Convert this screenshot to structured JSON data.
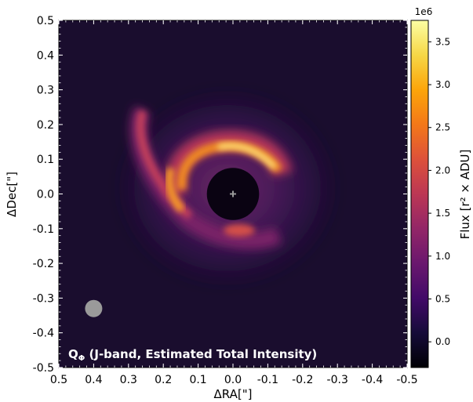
{
  "chart_data": {
    "type": "heatmap",
    "title_main": "Q",
    "title_sub": "Φ",
    "title_rest": " (J-band, Estimated Total Intensity)",
    "xlabel": "ΔRA[\"]",
    "ylabel": "ΔDec[\"]",
    "xlim": [
      0.5,
      -0.5
    ],
    "ylim": [
      -0.5,
      0.5
    ],
    "x_ticks": [
      "0.5",
      "0.4",
      "0.3",
      "0.2",
      "0.1",
      "0.0",
      "-0.1",
      "-0.2",
      "-0.3",
      "-0.4",
      "-0.5"
    ],
    "x_tick_values": [
      0.5,
      0.4,
      0.3,
      0.2,
      0.1,
      0.0,
      -0.1,
      -0.2,
      -0.3,
      -0.4,
      -0.5
    ],
    "y_ticks": [
      "-0.5",
      "-0.4",
      "-0.3",
      "-0.2",
      "-0.1",
      "0.0",
      "0.1",
      "0.2",
      "0.3",
      "0.4",
      "0.5"
    ],
    "y_tick_values": [
      -0.5,
      -0.4,
      -0.3,
      -0.2,
      -0.1,
      0.0,
      0.1,
      0.2,
      0.3,
      0.4,
      0.5
    ],
    "colorbar": {
      "label": "Flux [r² × ADU]",
      "exponent": "1e6",
      "range": [
        -0.3,
        3.75
      ],
      "ticks": [
        "0.0",
        "0.5",
        "1.0",
        "1.5",
        "2.0",
        "2.5",
        "3.0",
        "3.5"
      ],
      "tick_values": [
        0.0,
        0.5,
        1.0,
        1.5,
        2.0,
        2.5,
        3.0,
        3.5
      ],
      "colormap": "inferno"
    },
    "coronagraph_mask_radius_arcsec": 0.075,
    "star_marker": {
      "x": 0.0,
      "y": 0.0,
      "symbol": "+"
    },
    "beam": {
      "x": 0.4,
      "y": -0.33
    },
    "background_color": "#1a0d2e"
  }
}
